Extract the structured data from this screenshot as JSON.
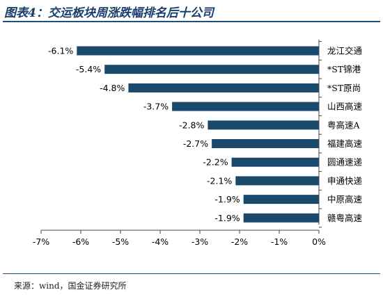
{
  "title": "图表4：交运板块周涨跌幅排名后十公司",
  "source": "来源：wind，国金证券研究所",
  "chart_data": {
    "type": "bar",
    "orientation": "horizontal",
    "title": "图表4：交运板块周涨跌幅排名后十公司",
    "xlabel": "",
    "ylabel": "",
    "categories": [
      "龙江交通",
      "*ST锦港",
      "*ST原尚",
      "山西高速",
      "粤高速A",
      "福建高速",
      "圆通速递",
      "申通快递",
      "中原高速",
      "赣粤高速"
    ],
    "values": [
      -6.1,
      -5.4,
      -4.8,
      -3.7,
      -2.8,
      -2.7,
      -2.2,
      -2.1,
      -1.9,
      -1.9
    ],
    "value_labels": [
      "-6.1%",
      "-5.4%",
      "-4.8%",
      "-3.7%",
      "-2.8%",
      "-2.7%",
      "-2.2%",
      "-2.1%",
      "-1.9%",
      "-1.9%"
    ],
    "xlim": [
      -7,
      0
    ],
    "xticks": [
      -7,
      -6,
      -5,
      -4,
      -3,
      -2,
      -1,
      0
    ],
    "xtick_labels": [
      "-7%",
      "-6%",
      "-5%",
      "-4%",
      "-3%",
      "-2%",
      "-1%",
      "0%"
    ],
    "bar_color": "#1a4a6b",
    "grid": false,
    "legend": "none"
  }
}
